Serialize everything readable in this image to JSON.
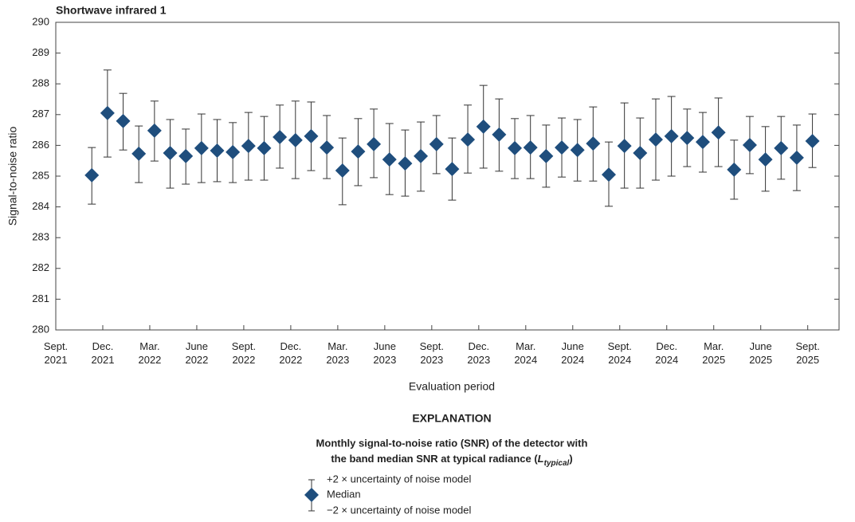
{
  "chart_data": {
    "type": "errorbar",
    "title": "Shortwave infrared 1",
    "x_label": "Evaluation period",
    "y_label": "Signal-to-noise ratio",
    "x": [
      "2021-11",
      "2021-12",
      "2022-01",
      "2022-02",
      "2022-03",
      "2022-04",
      "2022-05",
      "2022-06",
      "2022-07",
      "2022-08",
      "2022-09",
      "2022-10",
      "2022-11",
      "2022-12",
      "2023-01",
      "2023-02",
      "2023-03",
      "2023-04",
      "2023-05",
      "2023-06",
      "2023-07",
      "2023-08",
      "2023-09",
      "2023-10",
      "2023-11",
      "2023-12",
      "2024-01",
      "2024-02",
      "2024-03",
      "2024-04",
      "2024-05",
      "2024-06",
      "2024-07",
      "2024-08",
      "2024-09",
      "2024-10",
      "2024-11",
      "2024-12",
      "2025-01",
      "2025-02",
      "2025-03",
      "2025-04",
      "2025-05",
      "2025-06",
      "2025-07",
      "2025-08",
      "2025-09"
    ],
    "series": [
      {
        "name": "Median",
        "color": "#1f4e7d",
        "values": [
          285.03,
          287.05,
          286.79,
          285.73,
          286.48,
          285.75,
          285.65,
          285.91,
          285.83,
          285.78,
          285.98,
          285.91,
          286.27,
          286.17,
          286.3,
          285.93,
          285.18,
          285.8,
          286.04,
          285.54,
          285.41,
          285.65,
          286.04,
          285.23,
          286.19,
          286.61,
          286.35,
          285.91,
          285.93,
          285.65,
          285.93,
          285.85,
          286.06,
          285.05,
          285.98,
          285.75,
          286.19,
          286.3,
          286.24,
          286.11,
          286.42,
          285.21,
          286.01,
          285.54,
          285.91,
          285.6,
          286.14
        ]
      },
      {
        "name": "+2 × uncertainty of noise model",
        "color": "#333333",
        "values": [
          285.93,
          288.45,
          287.69,
          286.63,
          287.44,
          286.84,
          286.53,
          287.02,
          286.84,
          286.74,
          287.07,
          286.94,
          287.31,
          287.44,
          287.41,
          286.97,
          286.24,
          286.87,
          287.18,
          286.71,
          286.5,
          286.76,
          286.97,
          286.24,
          287.31,
          287.95,
          287.51,
          286.87,
          286.97,
          286.66,
          286.89,
          286.84,
          287.25,
          286.11,
          287.38,
          286.89,
          287.51,
          287.59,
          287.18,
          287.07,
          287.54,
          286.17,
          286.94,
          286.61,
          286.94,
          286.66,
          287.02
        ]
      },
      {
        "name": "−2 × uncertainty of noise model",
        "color": "#333333",
        "values": [
          284.09,
          285.62,
          285.85,
          284.79,
          285.49,
          284.61,
          284.74,
          284.79,
          284.82,
          284.79,
          284.87,
          284.87,
          285.26,
          284.92,
          285.18,
          284.92,
          284.07,
          284.69,
          284.95,
          284.4,
          284.35,
          284.51,
          285.08,
          284.22,
          285.1,
          285.26,
          285.16,
          284.92,
          284.92,
          284.64,
          284.97,
          284.84,
          284.84,
          284.02,
          284.61,
          284.61,
          284.87,
          285.0,
          285.31,
          285.13,
          285.31,
          284.25,
          285.08,
          284.51,
          284.9,
          284.53,
          285.28
        ]
      }
    ],
    "xlim": [
      "2021-09",
      "2025-11"
    ],
    "xticks": [
      {
        "value": "2021-09",
        "label": "Sept. 2021"
      },
      {
        "value": "2021-12",
        "label": "Dec. 2021"
      },
      {
        "value": "2022-03",
        "label": "Mar. 2022"
      },
      {
        "value": "2022-06",
        "label": "June 2022"
      },
      {
        "value": "2022-09",
        "label": "Sept. 2022"
      },
      {
        "value": "2022-12",
        "label": "Dec. 2022"
      },
      {
        "value": "2023-03",
        "label": "Mar. 2023"
      },
      {
        "value": "2023-06",
        "label": "June 2023"
      },
      {
        "value": "2023-09",
        "label": "Sept. 2023"
      },
      {
        "value": "2023-12",
        "label": "Dec. 2023"
      },
      {
        "value": "2024-03",
        "label": "Mar. 2024"
      },
      {
        "value": "2024-06",
        "label": "June 2024"
      },
      {
        "value": "2024-09",
        "label": "Sept. 2024"
      },
      {
        "value": "2024-12",
        "label": "Dec. 2024"
      },
      {
        "value": "2025-03",
        "label": "Mar. 2025"
      },
      {
        "value": "2025-06",
        "label": "June 2025"
      },
      {
        "value": "2025-09",
        "label": "Sept. 2025"
      }
    ],
    "ylim": [
      280,
      290
    ],
    "yticks": [
      280,
      281,
      282,
      283,
      284,
      285,
      286,
      287,
      288,
      289,
      290
    ],
    "grid": false,
    "legend": {
      "title": "EXPLANATION",
      "description": [
        "Monthly signal-to-noise ratio (SNR) of the detector with",
        "the band median SNR at typical radiance (",
        "L",
        "typical",
        ")"
      ]
    }
  }
}
